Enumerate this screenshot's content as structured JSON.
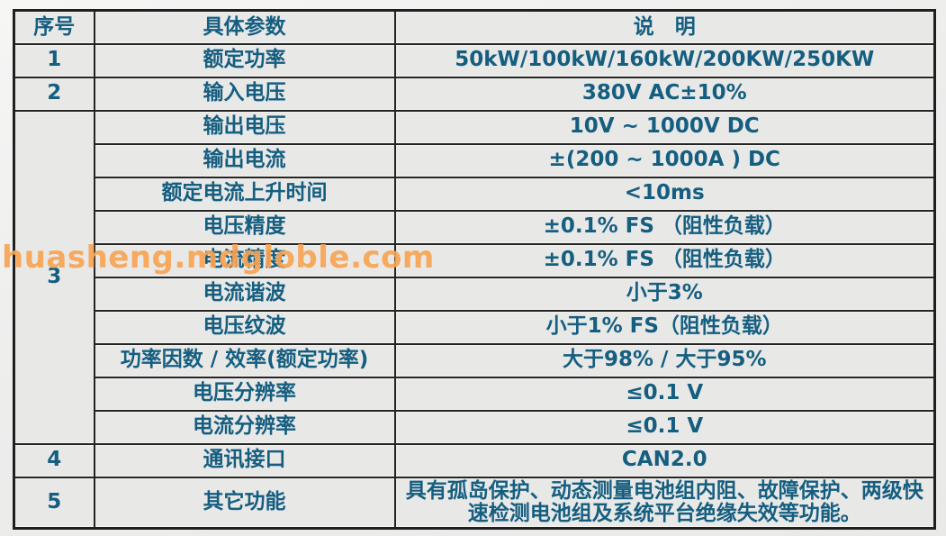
{
  "watermark": {
    "text": "huasheng.mdgloble.com",
    "color": "#F7A353"
  },
  "colors": {
    "text": "#155E80",
    "border": "#242424",
    "cell_background": "#E8E8E7",
    "watermark": "#F7A353"
  },
  "table": {
    "headers": {
      "no": "序号",
      "param": "具体参数",
      "desc": "说　明"
    },
    "rows": [
      {
        "no": "1",
        "param": "额定功率",
        "desc": "50kW/100kW/160kW/200KW/250KW"
      },
      {
        "no": "2",
        "param": "输入电压",
        "desc": "380V AC±10%"
      },
      {
        "no": "3",
        "param": "输出电压",
        "desc": "10V ~ 1000V DC"
      },
      {
        "param": "输出电流",
        "desc": "±(200 ~ 1000A ) DC"
      },
      {
        "param": "额定电流上升时间",
        "desc": "<10ms"
      },
      {
        "param": "电压精度",
        "desc": "±0.1% FS （阻性负载）"
      },
      {
        "param": "电流精度",
        "desc": "±0.1% FS （阻性负载）"
      },
      {
        "param": "电流谐波",
        "desc": "小于3%"
      },
      {
        "param": "电压纹波",
        "desc": "小于1% FS（阻性负载）"
      },
      {
        "param": "功率因数 / 效率(额定功率)",
        "desc": "大于98% / 大于95%"
      },
      {
        "param": "电压分辨率",
        "desc": "≤0.1 V"
      },
      {
        "param": "电流分辨率",
        "desc": "≤0.1 V"
      },
      {
        "no": "4",
        "param": "通讯接口",
        "desc": "CAN2.0"
      },
      {
        "no": "5",
        "param": "其它功能",
        "desc": "具有孤岛保护、动态测量电池组内阻、故障保护、两级快\n速检测电池组及系统平台绝缘失效等功能。"
      }
    ]
  }
}
